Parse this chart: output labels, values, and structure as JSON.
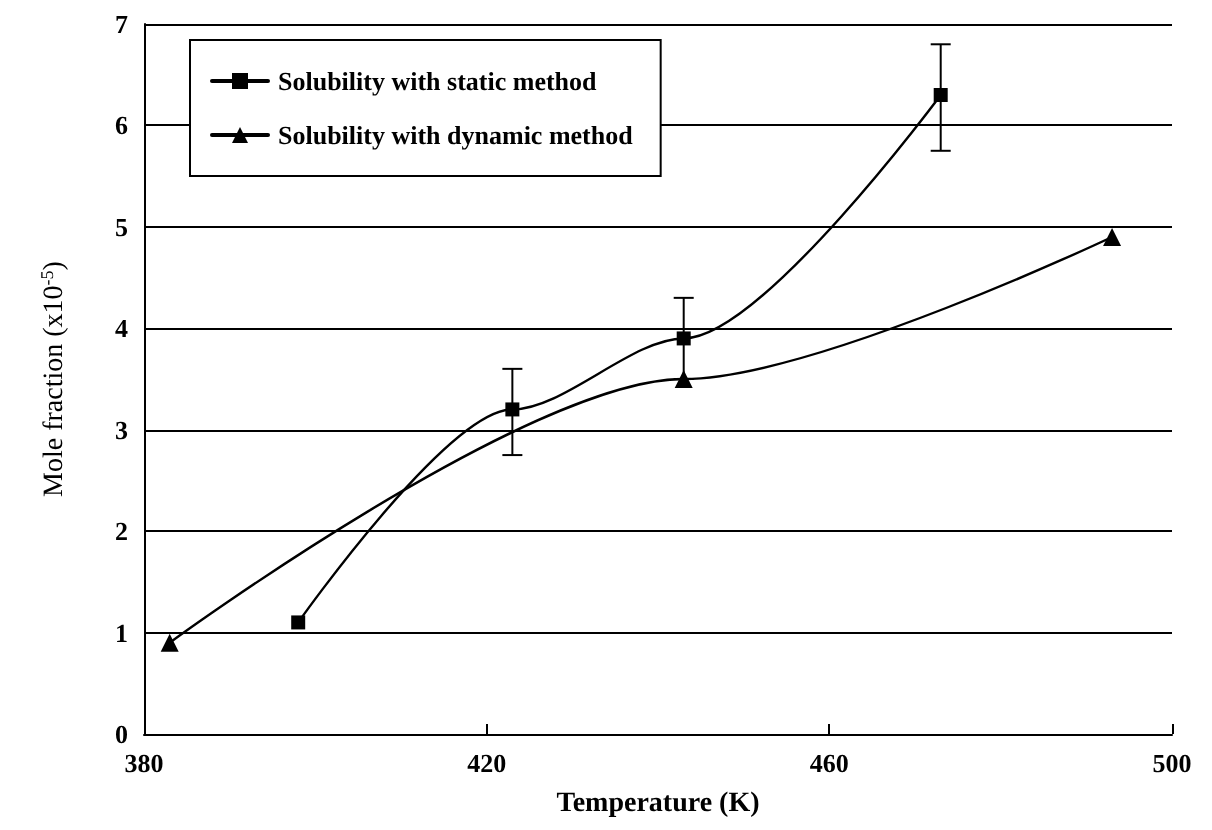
{
  "chart_data": {
    "type": "line",
    "xlabel": "Temperature (K)",
    "ylabel": "Mole fraction (x10$^{-5}$)",
    "xlim": [
      380,
      500
    ],
    "xticks": [
      380,
      420,
      460,
      500
    ],
    "ylim": [
      0,
      7
    ],
    "yticks": [
      0,
      1,
      2,
      3,
      4,
      5,
      6,
      7
    ],
    "grid": "y",
    "legend": "top left",
    "series": [
      {
        "name": "Solubility with static method",
        "color": "#000000",
        "marker": "square",
        "x": [
          398,
          423,
          443,
          473
        ],
        "values": [
          1.1,
          3.2,
          3.9,
          6.3
        ],
        "errors": [
          null,
          [
            2.75,
            3.6
          ],
          [
            3.5,
            4.3
          ],
          [
            5.75,
            6.8
          ]
        ]
      },
      {
        "name": "Solubility with dynamic method",
        "color": "#000000",
        "marker": "triangle",
        "x": [
          383,
          443,
          493
        ],
        "values": [
          0.9,
          3.5,
          4.9
        ]
      }
    ]
  }
}
